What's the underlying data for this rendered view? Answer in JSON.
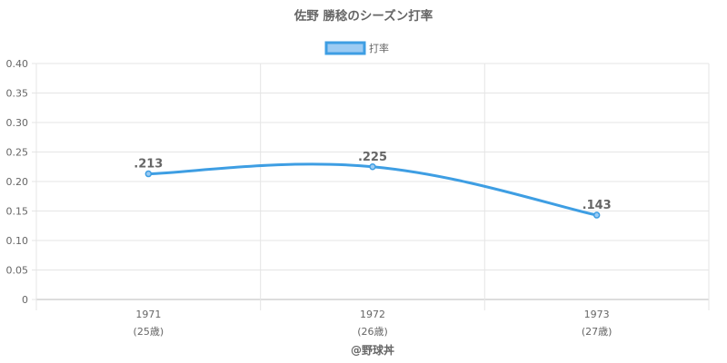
{
  "chart_data": {
    "type": "line",
    "title": "佐野 勝稔のシーズン打率",
    "legend": {
      "position": "top",
      "label": "打率"
    },
    "categories": [
      "1971",
      "1972",
      "1973"
    ],
    "sublabels": [
      "(25歳)",
      "(26歳)",
      "(27歳)"
    ],
    "series": [
      {
        "name": "打率",
        "values": [
          0.213,
          0.225,
          0.143
        ],
        "labels": [
          ".213",
          ".225",
          ".143"
        ]
      }
    ],
    "ylim": [
      0,
      0.4
    ],
    "yticks": [
      0,
      0.05,
      0.1,
      0.15,
      0.2,
      0.25,
      0.3,
      0.35,
      0.4
    ],
    "ytick_labels": [
      "0",
      "0.05",
      "0.10",
      "0.15",
      "0.20",
      "0.25",
      "0.30",
      "0.35",
      "0.40"
    ],
    "grid": true
  },
  "colors": {
    "line": "#3e9ee3",
    "legend_fill": "#9ccbf3",
    "grid": "#e5e5e5",
    "text": "#666666"
  },
  "credit": "@野球丼"
}
